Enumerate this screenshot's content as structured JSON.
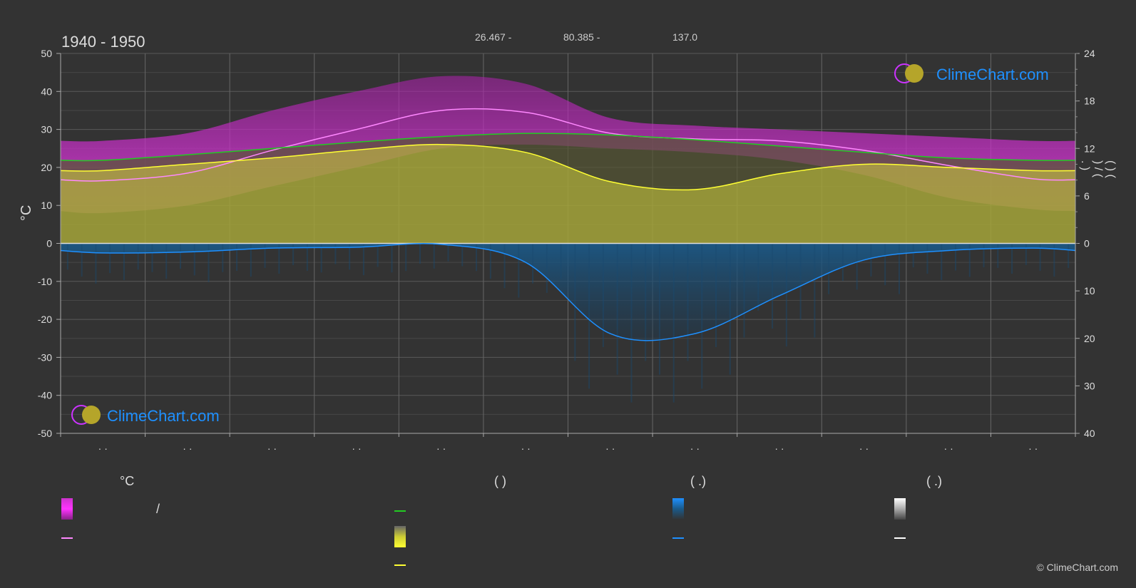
{
  "header": {
    "period": "1940 - 1950",
    "coords": [
      "26.467 -",
      "80.385 -",
      "137.0"
    ]
  },
  "watermark": {
    "text": "ClimeChart.com"
  },
  "copyright": "© ClimeChart.com",
  "legend": {
    "col1_head": "°C",
    "col2_head": "(            )",
    "col3_head": "(    .)",
    "col4_head": "(    .)",
    "slash": "/"
  },
  "colors": {
    "background": "#333333",
    "grid": "#555555",
    "temp_band": "#cc33cc",
    "sunshine_band": "#a5a53a",
    "precip_band": "#1a5a8a",
    "max_temp_line": "#ff88ff",
    "daylight_line": "#22cc22",
    "sunshine_line": "#ffff33",
    "precip_line": "#1e90ff"
  },
  "chart_data": {
    "type": "line",
    "ylabel_left": "°C",
    "ylabel_right": "(   )      (   )    /   (  .  )",
    "left_axis": {
      "ylim": [
        -50,
        50
      ],
      "ticks": [
        50,
        40,
        30,
        20,
        10,
        0,
        -10,
        -20,
        -30,
        -40,
        -50
      ]
    },
    "right_axis_top": {
      "ylim": [
        0,
        24
      ],
      "ticks": [
        24,
        18,
        12,
        6,
        0
      ]
    },
    "right_axis_bottom": {
      "ylim": [
        0,
        40
      ],
      "ticks": [
        0,
        10,
        20,
        30,
        40
      ]
    },
    "x_tick_labels": [
      "· ·",
      "· ·",
      "· ·",
      "· ·",
      "· ·",
      "· ·",
      "· ·",
      "· ·",
      "· ·",
      "· ·",
      "· ·",
      "· ·"
    ],
    "grid": true,
    "x_months": [
      0,
      1,
      2,
      3,
      4,
      5,
      6,
      7,
      8,
      9,
      10,
      11
    ],
    "series": [
      {
        "key": "max_temp",
        "unit": "°C",
        "values": [
          16.5,
          18.5,
          24.5,
          30,
          35,
          34.5,
          29,
          27.5,
          27,
          24.5,
          20.5,
          17
        ]
      },
      {
        "key": "daylight_hours",
        "unit": "h",
        "values": [
          10.5,
          11.2,
          12.0,
          12.8,
          13.5,
          13.9,
          13.7,
          13.1,
          12.3,
          11.5,
          10.8,
          10.5
        ]
      },
      {
        "key": "sunshine_hours",
        "unit": "h",
        "values": [
          9.2,
          10.0,
          10.8,
          11.8,
          12.5,
          11.5,
          7.8,
          6.8,
          8.8,
          10.0,
          9.6,
          9.2
        ]
      },
      {
        "key": "precipitation",
        "unit": "mm",
        "values": [
          2.0,
          1.8,
          1.0,
          0.8,
          0.2,
          4.0,
          19.0,
          19.0,
          11.0,
          3.5,
          1.5,
          1.0
        ]
      }
    ],
    "bands": {
      "temp_band_top": [
        27,
        29,
        35,
        40,
        44,
        42,
        33,
        31,
        30,
        29,
        28,
        27
      ],
      "temp_band_bottom": [
        8,
        10,
        15,
        20,
        25,
        26,
        25,
        24,
        22,
        18,
        12,
        9
      ]
    }
  }
}
